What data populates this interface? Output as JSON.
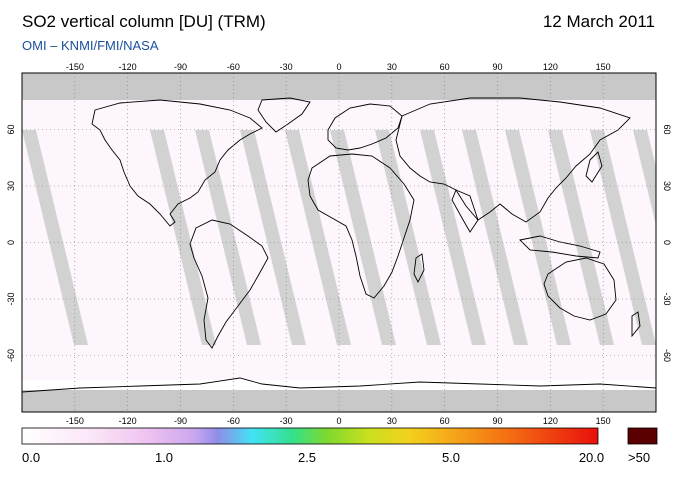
{
  "header": {
    "title": "SO2 vertical column [DU] (TRM)",
    "date": "12 March 2011",
    "subtitle": "OMI  –  KNMI/FMI/NASA"
  },
  "map": {
    "lon_ticks": [
      "-150",
      "-120",
      "-90",
      "-60",
      "-30",
      "0",
      "30",
      "60",
      "90",
      "120",
      "150"
    ],
    "lat_ticks_left": [
      "60",
      "30",
      "0",
      "-30",
      "-60"
    ],
    "lat_ticks_right": [
      "60",
      "30",
      "0",
      "-30",
      "-60"
    ],
    "colors": {
      "no_data": "#c8c8c8",
      "orbit_gap": "#d2d2d2",
      "land_gap": "#888888",
      "coast": "#000000"
    }
  },
  "colorbar": {
    "labels": [
      "0.0",
      "1.0",
      "2.5",
      "5.0",
      "20.0",
      ">50"
    ],
    "overflow_color": "#5a0000"
  }
}
